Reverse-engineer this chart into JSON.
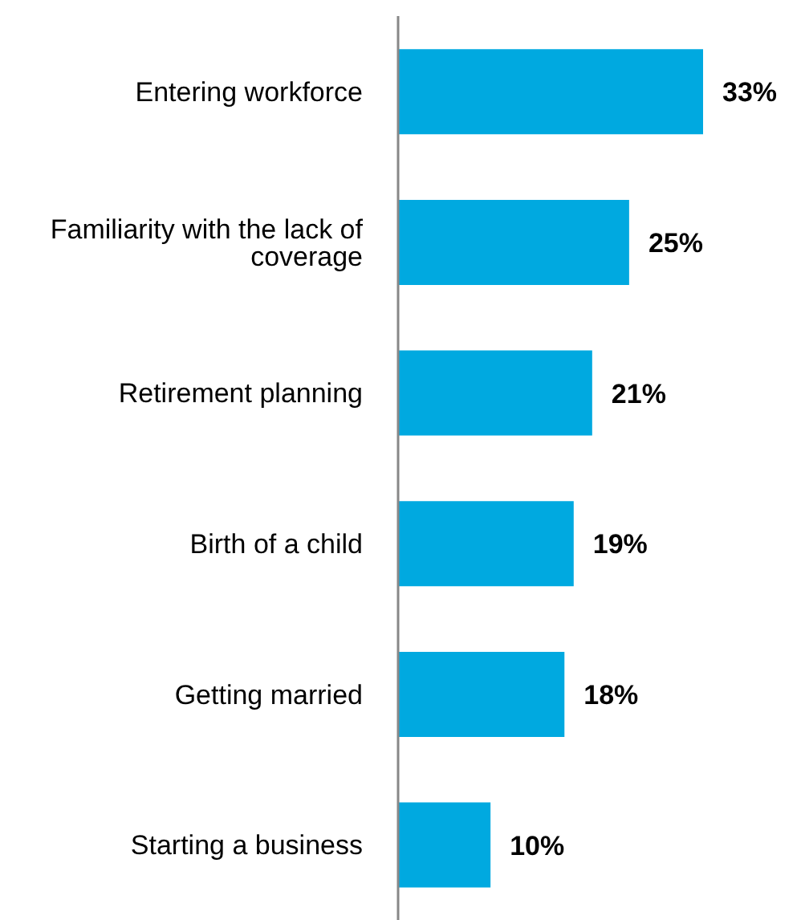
{
  "chart_data": {
    "type": "bar",
    "orientation": "horizontal",
    "categories": [
      "Entering workforce",
      "Familiarity with the lack of coverage",
      "Retirement planning",
      "Birth of a child",
      "Getting married",
      "Starting a business"
    ],
    "values": [
      33,
      25,
      21,
      19,
      18,
      10
    ],
    "value_labels": [
      "33%",
      "25%",
      "21%",
      "19%",
      "18%",
      "10%"
    ],
    "color": "#00a9e0",
    "grid": false,
    "legend": false
  }
}
